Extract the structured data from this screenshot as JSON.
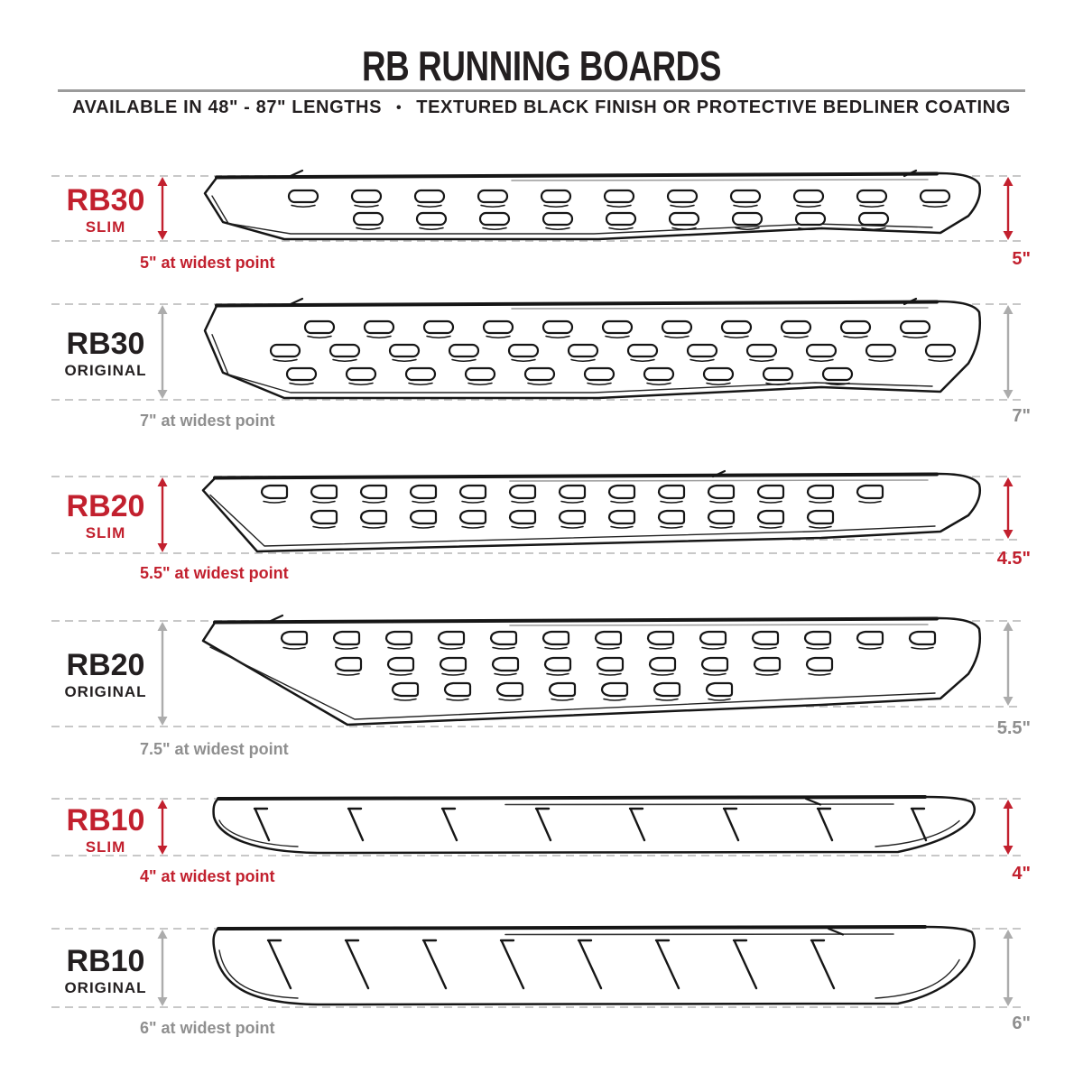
{
  "header": {
    "title": "RB RUNNING BOARDS",
    "subtitle_left": "AVAILABLE IN 48\" - 87\" LENGTHS",
    "bullet": "•",
    "subtitle_right": "TEXTURED BLACK FINISH OR PROTECTIVE BEDLINER COATING"
  },
  "colors": {
    "accent_red": "#C2202E",
    "ink_black": "#231F20",
    "muted_gray": "#8F8F8F",
    "arrow_gray": "#ACACAC",
    "dash_gray": "#C8C8C8"
  },
  "rows": [
    {
      "series": "RB30",
      "variant": "SLIM",
      "theme": "red",
      "widest_label": "5\" at widest point",
      "end_width_label": "5\"",
      "tread_pattern": "oval-slots"
    },
    {
      "series": "RB30",
      "variant": "ORIGINAL",
      "theme": "gray",
      "widest_label": "7\" at widest point",
      "end_width_label": "7\"",
      "tread_pattern": "oval-slots"
    },
    {
      "series": "RB20",
      "variant": "SLIM",
      "theme": "red",
      "widest_label": "5.5\" at widest point",
      "end_width_label": "4.5\"",
      "tread_pattern": "d-slots"
    },
    {
      "series": "RB20",
      "variant": "ORIGINAL",
      "theme": "gray",
      "widest_label": "7.5\" at widest point",
      "end_width_label": "5.5\"",
      "tread_pattern": "d-slots"
    },
    {
      "series": "RB10",
      "variant": "SLIM",
      "theme": "red",
      "widest_label": "4\" at widest point",
      "end_width_label": "4\"",
      "tread_pattern": "diagonal-slashes"
    },
    {
      "series": "RB10",
      "variant": "ORIGINAL",
      "theme": "gray",
      "widest_label": "6\" at widest point",
      "end_width_label": "6\"",
      "tread_pattern": "diagonal-slashes"
    }
  ]
}
